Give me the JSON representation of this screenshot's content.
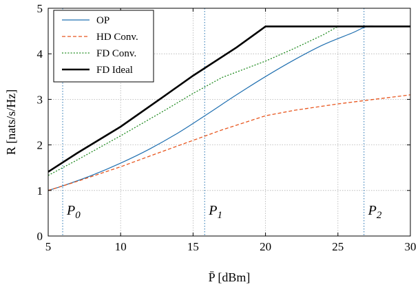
{
  "chart_data": {
    "type": "line",
    "xlabel": "P̄ [dBm]",
    "ylabel": "R [nats/s/Hz]",
    "xlim": [
      5,
      30
    ],
    "ylim": [
      0,
      5
    ],
    "xticks": [
      5,
      10,
      15,
      20,
      25,
      30
    ],
    "yticks": [
      0,
      1,
      2,
      3,
      4,
      5
    ],
    "grid": true,
    "legend_position": "top-left",
    "series": [
      {
        "name": "OP",
        "color": "#1f6fb0",
        "dash": "solid",
        "x": [
          5,
          6,
          8,
          10,
          12,
          14,
          16,
          18,
          20,
          22,
          24,
          26,
          27,
          28,
          30
        ],
        "y": [
          1.0,
          1.1,
          1.33,
          1.6,
          1.91,
          2.27,
          2.68,
          3.1,
          3.5,
          3.87,
          4.2,
          4.46,
          4.6,
          4.6,
          4.6
        ]
      },
      {
        "name": "HD Conv.",
        "color": "#e8561e",
        "dash": "dashed",
        "x": [
          5,
          7,
          10,
          13,
          15,
          17,
          20,
          22,
          25,
          27,
          30
        ],
        "y": [
          1.0,
          1.2,
          1.52,
          1.87,
          2.1,
          2.33,
          2.64,
          2.76,
          2.9,
          2.98,
          3.1
        ]
      },
      {
        "name": "FD Conv.",
        "color": "#1e8a1e",
        "dash": "dotted",
        "x": [
          5,
          7,
          10,
          13,
          15,
          17,
          20,
          22,
          24,
          25,
          30
        ],
        "y": [
          1.33,
          1.67,
          2.2,
          2.75,
          3.13,
          3.48,
          3.84,
          4.12,
          4.42,
          4.6,
          4.6
        ]
      },
      {
        "name": "FD Ideal",
        "color": "#000000",
        "dash": "solid-thick",
        "x": [
          5,
          7,
          10,
          13,
          15,
          18,
          20,
          25,
          30
        ],
        "y": [
          1.41,
          1.82,
          2.4,
          3.07,
          3.52,
          4.14,
          4.6,
          4.6,
          4.6
        ]
      }
    ],
    "vertical_markers": [
      {
        "label": "P",
        "sub": "0",
        "x": 6
      },
      {
        "label": "P",
        "sub": "1",
        "x": 15.8
      },
      {
        "label": "P",
        "sub": "2",
        "x": 26.8
      }
    ]
  }
}
